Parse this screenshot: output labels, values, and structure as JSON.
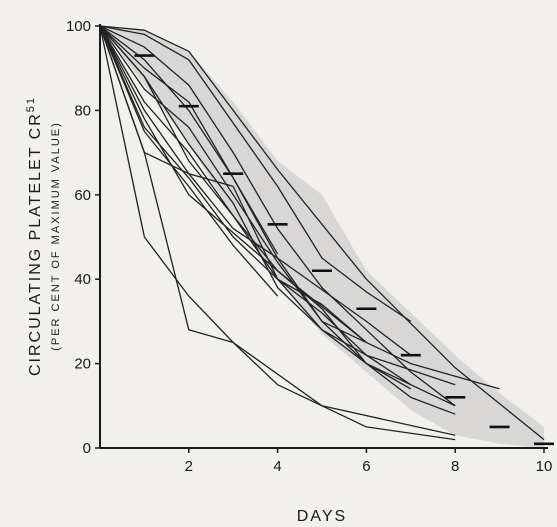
{
  "chart_data": {
    "type": "line",
    "xlabel": "DAYS",
    "ylabel": "CIRCULATING PLATELET CR",
    "ylabel_superscript": "51",
    "ylabel_sub": "(PER CENT OF MAXIMUM VALUE)",
    "xlim": [
      0,
      10
    ],
    "ylim": [
      0,
      100
    ],
    "x_ticks": [
      2,
      4,
      6,
      8,
      10
    ],
    "y_ticks": [
      0,
      20,
      40,
      60,
      80,
      100
    ],
    "grid": false,
    "legend": "none",
    "band": {
      "upper": [
        [
          0,
          100
        ],
        [
          1,
          99
        ],
        [
          2,
          94
        ],
        [
          3,
          82
        ],
        [
          4,
          68
        ],
        [
          5,
          60
        ],
        [
          6,
          42
        ],
        [
          7,
          32
        ],
        [
          8,
          22
        ],
        [
          9,
          13
        ],
        [
          10,
          5
        ]
      ],
      "lower": [
        [
          10,
          0
        ],
        [
          9,
          1
        ],
        [
          8,
          3
        ],
        [
          7,
          9
        ],
        [
          6,
          18
        ],
        [
          5,
          27
        ],
        [
          4,
          40
        ],
        [
          3,
          55
        ],
        [
          2,
          72
        ],
        [
          1,
          86
        ],
        [
          0,
          100
        ]
      ]
    },
    "mean_marks": [
      {
        "x": 1,
        "y": 93
      },
      {
        "x": 2,
        "y": 81
      },
      {
        "x": 3,
        "y": 65
      },
      {
        "x": 4,
        "y": 53
      },
      {
        "x": 5,
        "y": 42
      },
      {
        "x": 6,
        "y": 33
      },
      {
        "x": 7,
        "y": 22
      },
      {
        "x": 8,
        "y": 12
      },
      {
        "x": 9,
        "y": 5
      },
      {
        "x": 10,
        "y": 1
      }
    ],
    "series": [
      {
        "x": [
          0,
          1,
          2,
          3,
          4,
          5,
          6,
          8
        ],
        "y": [
          100,
          70,
          28,
          25,
          15,
          10,
          5,
          2
        ]
      },
      {
        "x": [
          0,
          1,
          2,
          3,
          5,
          8
        ],
        "y": [
          100,
          50,
          36,
          25,
          10,
          3
        ]
      },
      {
        "x": [
          0,
          1,
          2,
          4,
          6,
          8,
          10
        ],
        "y": [
          100,
          99,
          94,
          66,
          40,
          19,
          2
        ]
      },
      {
        "x": [
          0,
          1,
          2,
          4,
          5,
          6,
          7
        ],
        "y": [
          100,
          98,
          92,
          62,
          45,
          37,
          30
        ]
      },
      {
        "x": [
          0,
          1,
          2,
          3,
          4
        ],
        "y": [
          100,
          90,
          82,
          64,
          46
        ]
      },
      {
        "x": [
          0,
          1,
          2,
          3,
          4,
          5,
          6,
          8
        ],
        "y": [
          100,
          70,
          65,
          62,
          40,
          32,
          22,
          15
        ]
      },
      {
        "x": [
          0,
          1,
          2,
          3,
          4,
          5,
          7,
          9
        ],
        "y": [
          100,
          85,
          76,
          60,
          44,
          30,
          20,
          14
        ]
      },
      {
        "x": [
          0,
          1,
          2,
          3,
          4,
          5,
          6,
          8
        ],
        "y": [
          100,
          82,
          70,
          55,
          42,
          33,
          20,
          10
        ]
      },
      {
        "x": [
          0,
          1,
          2,
          3,
          4,
          5,
          6,
          7
        ],
        "y": [
          100,
          88,
          72,
          58,
          38,
          28,
          22,
          15
        ]
      },
      {
        "x": [
          0,
          1,
          2,
          3,
          4,
          6,
          7
        ],
        "y": [
          100,
          80,
          65,
          52,
          45,
          30,
          22
        ]
      },
      {
        "x": [
          0,
          1,
          2,
          4,
          6
        ],
        "y": [
          100,
          78,
          60,
          42,
          25
        ]
      },
      {
        "x": [
          0,
          1,
          2,
          3,
          4
        ],
        "y": [
          100,
          75,
          62,
          48,
          36
        ]
      },
      {
        "x": [
          0,
          1,
          2,
          3,
          4,
          5,
          6,
          7,
          8
        ],
        "y": [
          100,
          92,
          80,
          64,
          45,
          30,
          20,
          12,
          8
        ]
      },
      {
        "x": [
          0,
          1,
          2,
          3,
          4,
          5,
          6
        ],
        "y": [
          100,
          88,
          68,
          55,
          40,
          34,
          25
        ]
      },
      {
        "x": [
          0,
          1,
          2,
          3,
          4,
          5,
          6,
          7
        ],
        "y": [
          100,
          76,
          64,
          50,
          40,
          28,
          20,
          14
        ]
      },
      {
        "x": [
          0,
          1,
          2,
          3,
          4,
          5,
          6,
          7,
          8
        ],
        "y": [
          100,
          95,
          86,
          70,
          52,
          38,
          28,
          18,
          10
        ]
      }
    ]
  }
}
